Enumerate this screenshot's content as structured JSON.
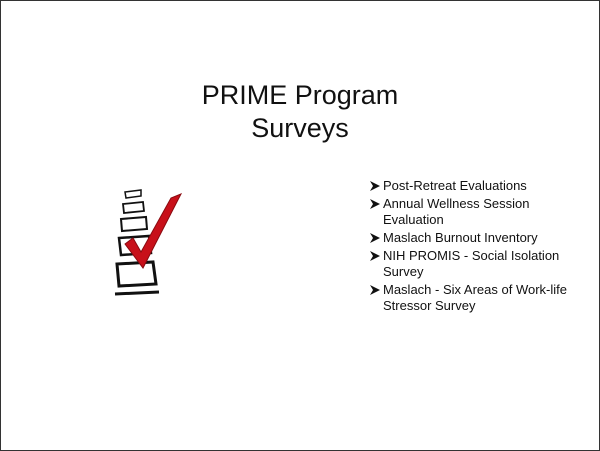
{
  "slide": {
    "title": [
      "PRIME Program",
      "Surveys"
    ],
    "bullets": [
      "Post-Retreat Evaluations",
      "Annual Wellness Session Evaluation",
      "Maslach Burnout Inventory",
      "NIH PROMIS - Social Isolation Survey",
      "Maslach - Six Areas of Work-life Stressor Survey"
    ]
  }
}
